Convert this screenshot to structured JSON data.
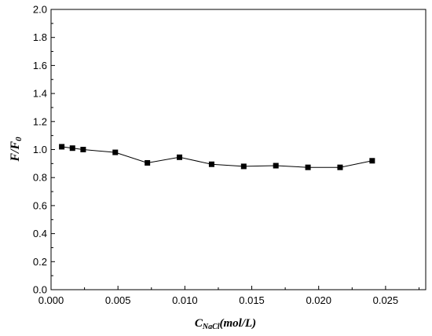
{
  "chart_data": {
    "type": "line",
    "title": "",
    "xlabel": {
      "main": "C",
      "sub": "NaCl",
      "rest": "(mol/L)"
    },
    "ylabel": {
      "main": "F/F",
      "sub": "0"
    },
    "xlim": [
      0.0,
      0.028
    ],
    "ylim": [
      0.0,
      2.0
    ],
    "xticks": [
      0.0,
      0.005,
      0.01,
      0.015,
      0.02,
      0.025
    ],
    "xtick_labels": [
      "0.000",
      "0.005",
      "0.010",
      "0.015",
      "0.020",
      "0.025"
    ],
    "yticks": [
      0.0,
      0.2,
      0.4,
      0.6,
      0.8,
      1.0,
      1.2,
      1.4,
      1.6,
      1.8,
      2.0
    ],
    "ytick_labels": [
      "0.0",
      "0.2",
      "0.4",
      "0.6",
      "0.8",
      "1.0",
      "1.2",
      "1.4",
      "1.6",
      "1.8",
      "2.0"
    ],
    "series": [
      {
        "x": [
          0.0008,
          0.0016,
          0.0024,
          0.0048,
          0.0072,
          0.0096,
          0.012,
          0.0144,
          0.0168,
          0.0192,
          0.0216,
          0.024
        ],
        "y": [
          1.02,
          1.01,
          1.0,
          0.98,
          0.905,
          0.945,
          0.895,
          0.88,
          0.885,
          0.873,
          0.873,
          0.92
        ],
        "marker": "square",
        "color": "#000000"
      }
    ],
    "grid": false,
    "legend": "none"
  }
}
